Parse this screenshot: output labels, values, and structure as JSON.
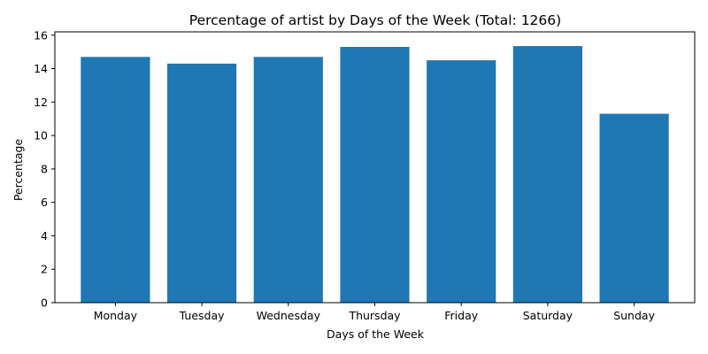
{
  "chart_data": {
    "type": "bar",
    "title": "Percentage of artist by Days of the Week (Total: 1266)",
    "xlabel": "Days of the Week",
    "ylabel": "Percentage",
    "categories": [
      "Monday",
      "Tuesday",
      "Wednesday",
      "Thursday",
      "Friday",
      "Saturday",
      "Sunday"
    ],
    "values": [
      14.7,
      14.3,
      14.7,
      15.3,
      14.5,
      15.35,
      11.3
    ],
    "ylim": [
      0,
      16.2
    ],
    "yticks": [
      0,
      2,
      4,
      6,
      8,
      10,
      12,
      14,
      16
    ],
    "bar_color": "#1f77b4",
    "grid": false,
    "legend": "none"
  }
}
